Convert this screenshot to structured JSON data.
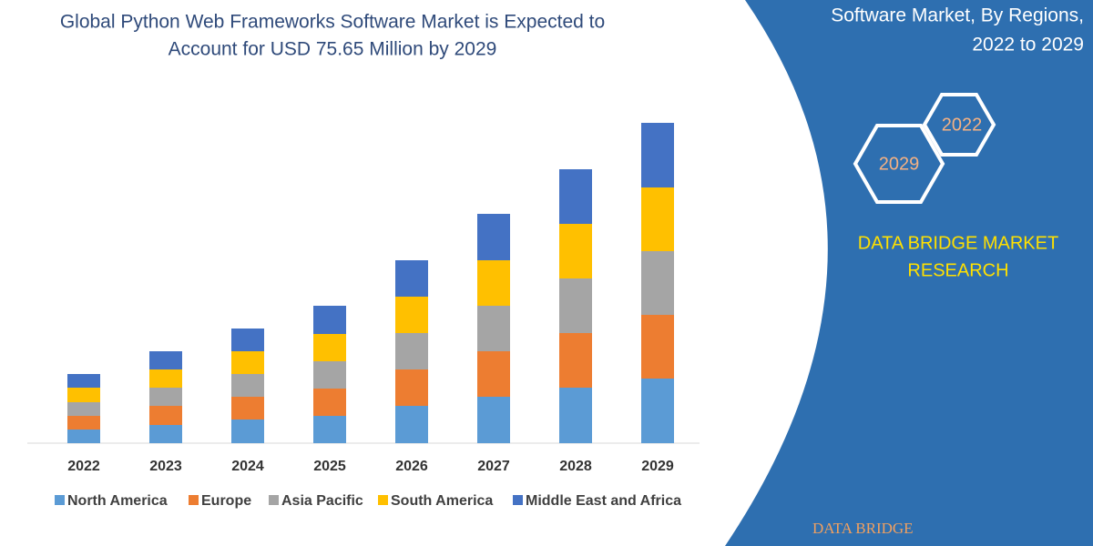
{
  "chart_data": {
    "type": "stacked-bar",
    "title": [
      "Global Python Web Frameworks Software Market is Expected to",
      "Account for USD 75.65 Million by 2029"
    ],
    "categories": [
      "2022",
      "2023",
      "2024",
      "2025",
      "2026",
      "2027",
      "2028",
      "2029"
    ],
    "series": [
      {
        "name": "North America",
        "color": "#5b9bd5",
        "values": [
          15,
          20,
          26,
          30,
          41,
          51,
          61,
          71
        ]
      },
      {
        "name": "Europe",
        "color": "#ed7d31",
        "values": [
          15,
          21,
          25,
          30,
          40,
          50,
          60,
          70
        ]
      },
      {
        "name": "Asia Pacific",
        "color": "#a5a5a5",
        "values": [
          15,
          20,
          25,
          30,
          40,
          50,
          60,
          70
        ]
      },
      {
        "name": "South America",
        "color": "#ffc000",
        "values": [
          16,
          20,
          25,
          30,
          40,
          50,
          60,
          70
        ]
      },
      {
        "name": "Middle East and Africa",
        "color": "#4472c4",
        "values": [
          15,
          20,
          25,
          31,
          40,
          51,
          60,
          71
        ]
      }
    ],
    "side_title": [
      "Software Market, By Regions,",
      "2022 to 2029"
    ],
    "hex_labels": [
      "2022",
      "2029"
    ],
    "brand": [
      "DATA BRIDGE MARKET",
      "RESEARCH"
    ],
    "logo": "DATA BRIDGE"
  }
}
